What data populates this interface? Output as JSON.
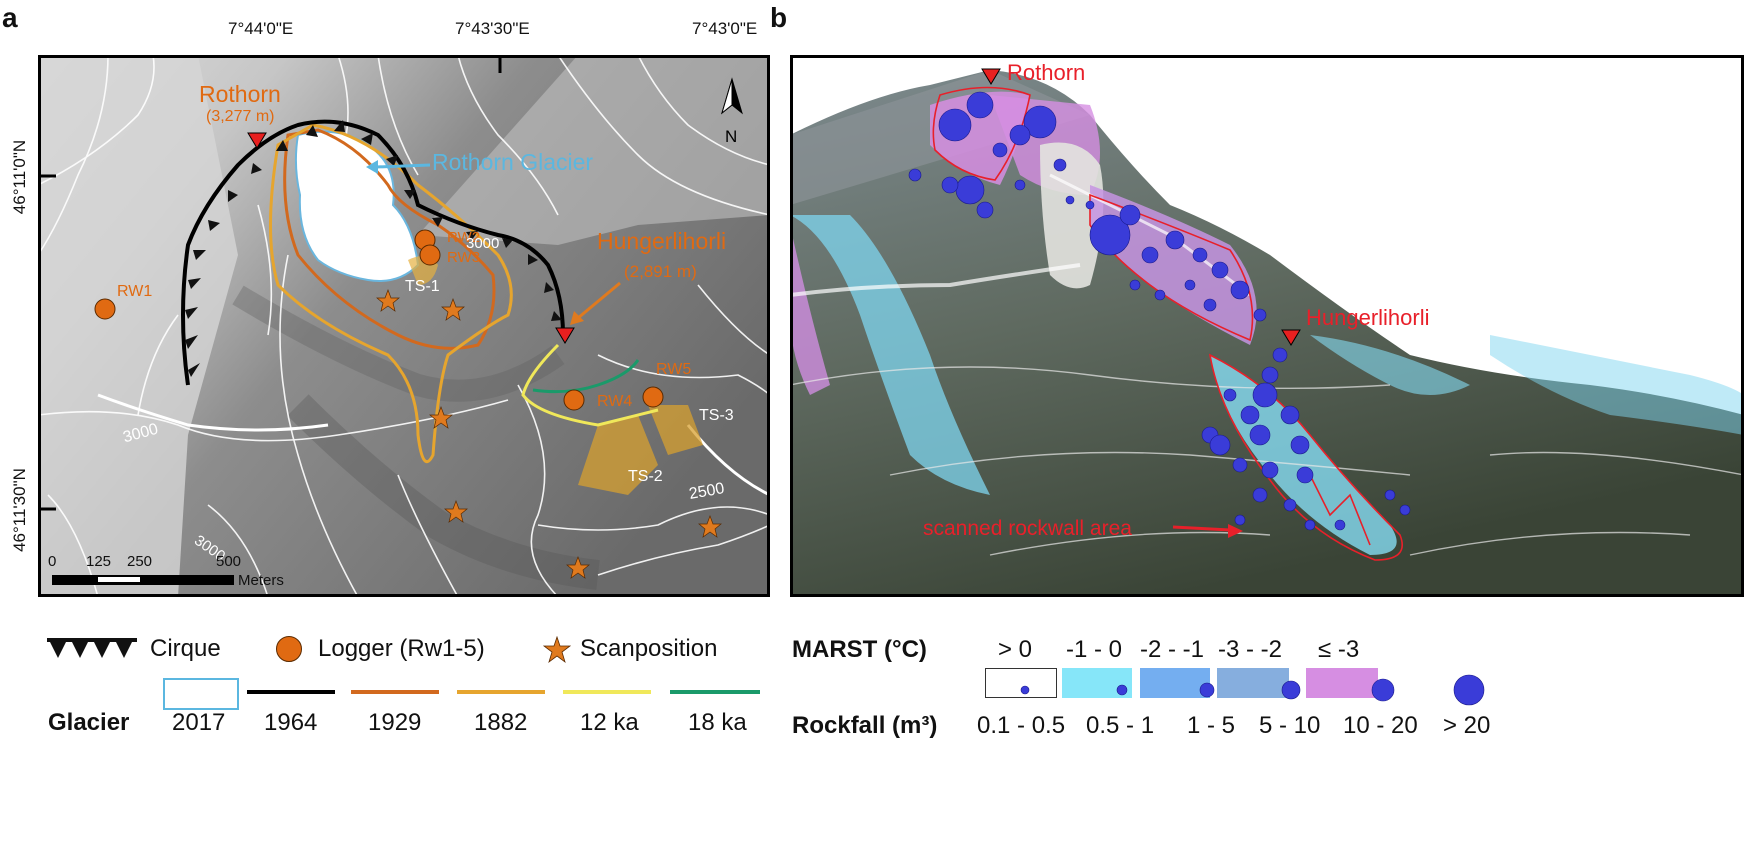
{
  "panel_a": {
    "letter": "a",
    "lon_ticks": [
      "7°44'0\"E",
      "7°43'30\"E",
      "7°43'0\"E"
    ],
    "lat_ticks": [
      "46°11'0\"N",
      "46°11'30\"N"
    ],
    "north": "N",
    "labels": {
      "rothorn": "Rothorn",
      "rothorn_elev": "(3,277 m)",
      "rothorn_glacier": "Rothorn Glacier",
      "hunger": "Hungerlihorli",
      "hunger_elev": "(2,891 m)",
      "rw1": "RW1",
      "rw2": "RW2",
      "rw3": "RW3",
      "rw4": "RW4",
      "rw5": "RW5",
      "ts1": "TS-1",
      "ts2": "TS-2",
      "ts3": "TS-3",
      "c3000a": "3000",
      "c3000b": "3000",
      "c3000c": "3000",
      "c2500": "2500"
    },
    "scalebar": {
      "ticks": [
        "0",
        "125",
        "250",
        "500"
      ],
      "unit": "Meters"
    }
  },
  "panel_b": {
    "letter": "b",
    "labels": {
      "rothorn": "Rothorn",
      "hunger": "Hungerlihorli",
      "scanned": "scanned rockwall area"
    }
  },
  "legend": {
    "cirque": "Cirque",
    "logger": "Logger (Rw1-5)",
    "scanposition": "Scanposition",
    "glacier_title": "Glacier",
    "glacier_items": [
      {
        "label": "2017",
        "color": "#5bb7e0"
      },
      {
        "label": "1964",
        "color": "#000000"
      },
      {
        "label": "1929",
        "color": "#d2691e"
      },
      {
        "label": "1882",
        "color": "#e6a52e"
      },
      {
        "label": "12 ka",
        "color": "#f0e85a"
      },
      {
        "label": "18 ka",
        "color": "#1a9a6a"
      }
    ],
    "marst_title": "MARST (°C)",
    "marst_items": [
      {
        "label": "> 0",
        "color": "#ffffff"
      },
      {
        "label": "-1 - 0",
        "color": "#86e6f9"
      },
      {
        "label": "-2 - -1",
        "color": "#74aef0"
      },
      {
        "label": "-3 - -2",
        "color": "#86aede"
      },
      {
        "label": "≤ -3",
        "color": "#d68ee2"
      }
    ],
    "rockfall_title": "Rockfall (m³)",
    "rockfall_items": [
      {
        "label": "0.1 - 0.5"
      },
      {
        "label": "0.5 - 1"
      },
      {
        "label": "1 - 5"
      },
      {
        "label": "5 - 10"
      },
      {
        "label": "10 - 20"
      },
      {
        "label": "> 20"
      }
    ]
  }
}
